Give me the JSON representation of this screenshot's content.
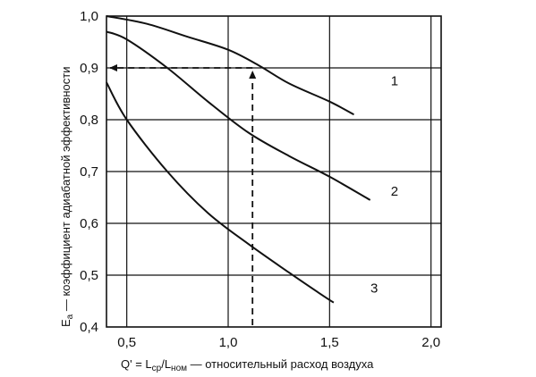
{
  "chart_data": {
    "type": "line",
    "xlabel": {
      "prefix": "Q' = L",
      "sub1": "ср",
      "mid": "/L",
      "sub2": "ном",
      "suffix": " — относительный расход воздуха"
    },
    "ylabel": {
      "prefix": "E",
      "sub": "a",
      "suffix": " — коэффициент адиабатной эффективности"
    },
    "xlim": [
      0.4,
      2.05
    ],
    "ylim": [
      0.4,
      1.0
    ],
    "x_ticks": [
      "0,5",
      "1,0",
      "1,5",
      "2,0"
    ],
    "x_tick_values": [
      0.5,
      1.0,
      1.5,
      2.0
    ],
    "y_ticks": [
      "0,4",
      "0,5",
      "0,6",
      "0,7",
      "0,8",
      "0,9",
      "1,0"
    ],
    "y_tick_values": [
      0.4,
      0.5,
      0.6,
      0.7,
      0.8,
      0.9,
      1.0
    ],
    "grid": true,
    "series": [
      {
        "name": "1",
        "points": [
          [
            0.4,
            1.0
          ],
          [
            0.6,
            0.985
          ],
          [
            0.8,
            0.96
          ],
          [
            1.0,
            0.935
          ],
          [
            1.15,
            0.905
          ],
          [
            1.3,
            0.87
          ],
          [
            1.5,
            0.835
          ],
          [
            1.62,
            0.81
          ]
        ],
        "label_at": [
          1.82,
          0.875
        ]
      },
      {
        "name": "2",
        "points": [
          [
            0.4,
            0.97
          ],
          [
            0.5,
            0.955
          ],
          [
            0.7,
            0.9
          ],
          [
            0.9,
            0.835
          ],
          [
            1.1,
            0.775
          ],
          [
            1.3,
            0.73
          ],
          [
            1.5,
            0.69
          ],
          [
            1.7,
            0.645
          ]
        ],
        "label_at": [
          1.82,
          0.662
        ]
      },
      {
        "name": "3",
        "points": [
          [
            0.4,
            0.872
          ],
          [
            0.5,
            0.8
          ],
          [
            0.7,
            0.7
          ],
          [
            0.9,
            0.62
          ],
          [
            1.1,
            0.56
          ],
          [
            1.3,
            0.505
          ],
          [
            1.45,
            0.465
          ],
          [
            1.52,
            0.447
          ]
        ],
        "label_at": [
          1.72,
          0.475
        ]
      }
    ],
    "annotation": {
      "x": 1.12,
      "y": 0.9,
      "type": "dashed-arrows",
      "from_x_axis_value": 1.12,
      "to_y_axis_value": 0.9
    }
  }
}
